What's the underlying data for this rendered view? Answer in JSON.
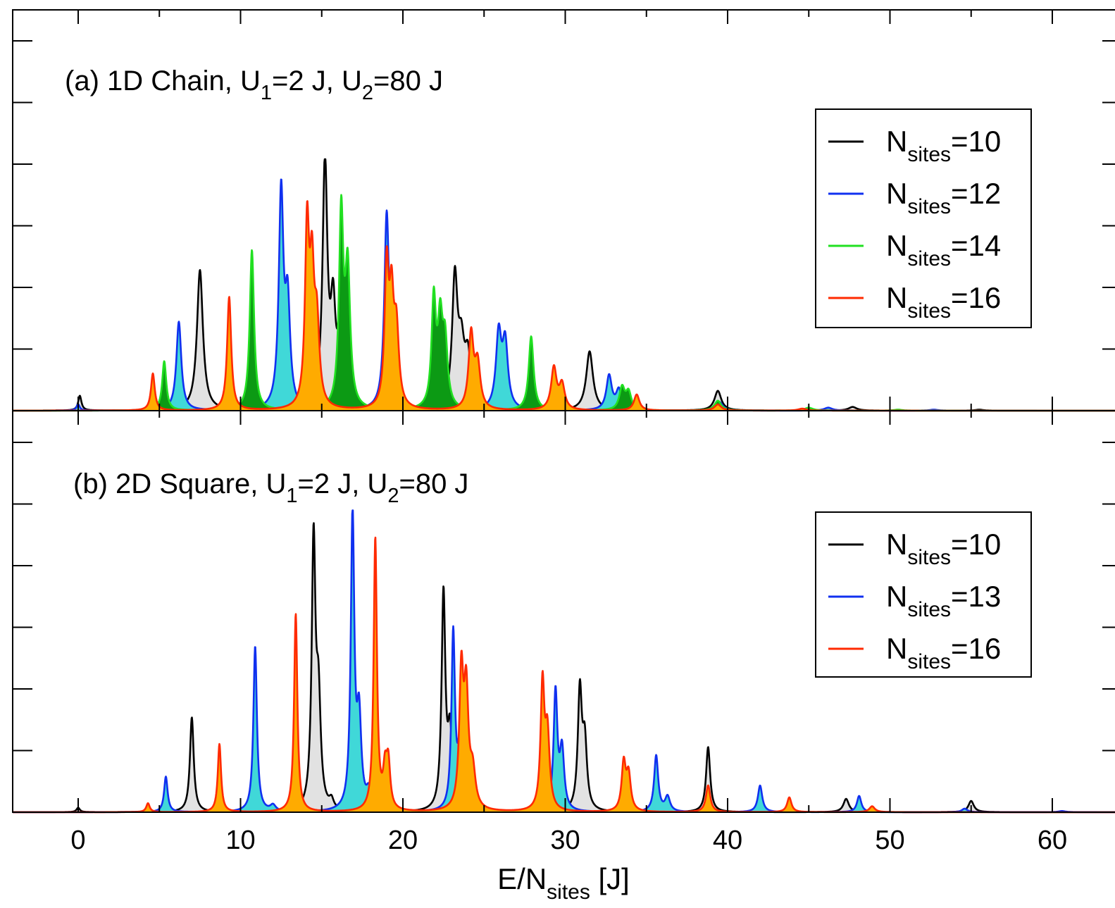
{
  "chart_data": [
    {
      "type": "area",
      "title_parts": [
        "(a) 1D Chain, U",
        "1",
        "=2 J, U",
        "2",
        "=80 J"
      ],
      "xlim": [
        -3.8,
        63.5
      ],
      "xticks": [
        0,
        10,
        20,
        30,
        40,
        50,
        60
      ],
      "legend": {
        "position": "top-right"
      },
      "series": [
        {
          "label": [
            "N",
            "sites",
            "=10"
          ],
          "color": "#000000",
          "fill": "#e2e2e2",
          "peaks": [
            {
              "x": 0.1,
              "y": 0.06,
              "w": 0.12
            },
            {
              "x": 7.5,
              "y": 0.57,
              "w": 0.22
            },
            {
              "x": 15.2,
              "y": 1.0,
              "w": 0.18
            },
            {
              "x": 15.7,
              "y": 0.38,
              "w": 0.18
            },
            {
              "x": 16.1,
              "y": 0.25,
              "w": 0.18
            },
            {
              "x": 23.2,
              "y": 0.52,
              "w": 0.2
            },
            {
              "x": 23.6,
              "y": 0.22,
              "w": 0.22
            },
            {
              "x": 24.0,
              "y": 0.2,
              "w": 0.22
            },
            {
              "x": 31.5,
              "y": 0.24,
              "w": 0.25
            },
            {
              "x": 39.4,
              "y": 0.08,
              "w": 0.25
            },
            {
              "x": 47.7,
              "y": 0.015,
              "w": 0.3
            },
            {
              "x": 55.5,
              "y": 0.004,
              "w": 0.3
            }
          ]
        },
        {
          "label": [
            "N",
            "sites",
            "=12"
          ],
          "color": "#1030f0",
          "fill": "#40d8d8",
          "peaks": [
            {
              "x": 0.0,
              "y": 0.025,
              "w": 0.12
            },
            {
              "x": 6.2,
              "y": 0.36,
              "w": 0.18
            },
            {
              "x": 12.5,
              "y": 0.87,
              "w": 0.17
            },
            {
              "x": 12.9,
              "y": 0.41,
              "w": 0.18
            },
            {
              "x": 19.0,
              "y": 0.76,
              "w": 0.17
            },
            {
              "x": 19.4,
              "y": 0.3,
              "w": 0.18
            },
            {
              "x": 25.9,
              "y": 0.3,
              "w": 0.2
            },
            {
              "x": 26.3,
              "y": 0.26,
              "w": 0.2
            },
            {
              "x": 32.7,
              "y": 0.14,
              "w": 0.2
            },
            {
              "x": 33.3,
              "y": 0.08,
              "w": 0.2
            },
            {
              "x": 39.5,
              "y": 0.035,
              "w": 0.25
            },
            {
              "x": 46.2,
              "y": 0.012,
              "w": 0.3
            },
            {
              "x": 52.7,
              "y": 0.004,
              "w": 0.3
            }
          ]
        },
        {
          "label": [
            "N",
            "sites",
            "=14"
          ],
          "color": "#22e022",
          "fill": "#0c9a14",
          "peaks": [
            {
              "x": 5.3,
              "y": 0.2,
              "w": 0.15
            },
            {
              "x": 10.7,
              "y": 0.65,
              "w": 0.16
            },
            {
              "x": 16.2,
              "y": 0.78,
              "w": 0.16
            },
            {
              "x": 16.6,
              "y": 0.55,
              "w": 0.18
            },
            {
              "x": 21.9,
              "y": 0.43,
              "w": 0.16
            },
            {
              "x": 22.3,
              "y": 0.33,
              "w": 0.18
            },
            {
              "x": 22.6,
              "y": 0.25,
              "w": 0.18
            },
            {
              "x": 27.9,
              "y": 0.3,
              "w": 0.18
            },
            {
              "x": 33.5,
              "y": 0.09,
              "w": 0.2
            },
            {
              "x": 33.9,
              "y": 0.07,
              "w": 0.2
            },
            {
              "x": 39.4,
              "y": 0.04,
              "w": 0.25
            },
            {
              "x": 45.0,
              "y": 0.012,
              "w": 0.3
            },
            {
              "x": 50.5,
              "y": 0.004,
              "w": 0.3
            }
          ]
        },
        {
          "label": [
            "N",
            "sites",
            "=16"
          ],
          "color": "#ff2a00",
          "fill": "#ffab00",
          "peaks": [
            {
              "x": 4.6,
              "y": 0.15,
              "w": 0.14
            },
            {
              "x": 9.3,
              "y": 0.46,
              "w": 0.15
            },
            {
              "x": 14.1,
              "y": 0.71,
              "w": 0.15
            },
            {
              "x": 14.4,
              "y": 0.5,
              "w": 0.16
            },
            {
              "x": 14.7,
              "y": 0.32,
              "w": 0.18
            },
            {
              "x": 19.0,
              "y": 0.55,
              "w": 0.15
            },
            {
              "x": 19.3,
              "y": 0.4,
              "w": 0.16
            },
            {
              "x": 19.6,
              "y": 0.3,
              "w": 0.18
            },
            {
              "x": 24.2,
              "y": 0.3,
              "w": 0.18
            },
            {
              "x": 24.6,
              "y": 0.18,
              "w": 0.2
            },
            {
              "x": 29.3,
              "y": 0.17,
              "w": 0.2
            },
            {
              "x": 29.8,
              "y": 0.1,
              "w": 0.2
            },
            {
              "x": 34.4,
              "y": 0.065,
              "w": 0.2
            },
            {
              "x": 39.4,
              "y": 0.025,
              "w": 0.25
            },
            {
              "x": 44.6,
              "y": 0.008,
              "w": 0.3
            }
          ]
        }
      ]
    },
    {
      "type": "area",
      "title_parts": [
        "(b) 2D Square, U",
        "1",
        "=2 J, U",
        "2",
        "=80 J"
      ],
      "xlabel_parts": [
        "E/N",
        "sites",
        " [J]"
      ],
      "xlim": [
        -3.8,
        63.5
      ],
      "xticks": [
        0,
        10,
        20,
        30,
        40,
        50,
        60
      ],
      "xticklabels": [
        "0",
        "10",
        "20",
        "30",
        "40",
        "50",
        "60"
      ],
      "legend": {
        "position": "top-right"
      },
      "series": [
        {
          "label": [
            "N",
            "sites",
            "=10"
          ],
          "color": "#000000",
          "fill": "#e2e2e2",
          "peaks": [
            {
              "x": 0.0,
              "y": 0.015,
              "w": 0.12
            },
            {
              "x": 7.0,
              "y": 0.32,
              "w": 0.14
            },
            {
              "x": 14.5,
              "y": 0.9,
              "w": 0.14
            },
            {
              "x": 14.8,
              "y": 0.35,
              "w": 0.16
            },
            {
              "x": 15.6,
              "y": 0.03,
              "w": 0.16
            },
            {
              "x": 22.5,
              "y": 0.73,
              "w": 0.14
            },
            {
              "x": 22.9,
              "y": 0.25,
              "w": 0.16
            },
            {
              "x": 30.9,
              "y": 0.4,
              "w": 0.15
            },
            {
              "x": 31.2,
              "y": 0.22,
              "w": 0.16
            },
            {
              "x": 38.8,
              "y": 0.22,
              "w": 0.15
            },
            {
              "x": 47.3,
              "y": 0.045,
              "w": 0.2
            },
            {
              "x": 55.0,
              "y": 0.038,
              "w": 0.2
            }
          ]
        },
        {
          "label": [
            "N",
            "sites",
            "=13"
          ],
          "color": "#1030f0",
          "fill": "#40d8d8",
          "peaks": [
            {
              "x": 5.4,
              "y": 0.12,
              "w": 0.13
            },
            {
              "x": 10.9,
              "y": 0.56,
              "w": 0.13
            },
            {
              "x": 12.0,
              "y": 0.02,
              "w": 0.2
            },
            {
              "x": 16.9,
              "y": 1.0,
              "w": 0.13
            },
            {
              "x": 17.3,
              "y": 0.3,
              "w": 0.16
            },
            {
              "x": 17.9,
              "y": 0.06,
              "w": 0.18
            },
            {
              "x": 23.1,
              "y": 0.6,
              "w": 0.13
            },
            {
              "x": 23.5,
              "y": 0.2,
              "w": 0.16
            },
            {
              "x": 29.4,
              "y": 0.4,
              "w": 0.14
            },
            {
              "x": 29.8,
              "y": 0.2,
              "w": 0.16
            },
            {
              "x": 35.6,
              "y": 0.19,
              "w": 0.15
            },
            {
              "x": 36.3,
              "y": 0.05,
              "w": 0.18
            },
            {
              "x": 42.0,
              "y": 0.09,
              "w": 0.16
            },
            {
              "x": 48.1,
              "y": 0.055,
              "w": 0.16
            },
            {
              "x": 54.6,
              "y": 0.012,
              "w": 0.2
            },
            {
              "x": 60.6,
              "y": 0.004,
              "w": 0.25
            }
          ]
        },
        {
          "label": [
            "N",
            "sites",
            "=16"
          ],
          "color": "#ff2a00",
          "fill": "#ffab00",
          "peaks": [
            {
              "x": 4.3,
              "y": 0.03,
              "w": 0.13
            },
            {
              "x": 8.7,
              "y": 0.23,
              "w": 0.12
            },
            {
              "x": 13.4,
              "y": 0.67,
              "w": 0.12
            },
            {
              "x": 18.3,
              "y": 0.92,
              "w": 0.12
            },
            {
              "x": 18.9,
              "y": 0.12,
              "w": 0.14
            },
            {
              "x": 19.1,
              "y": 0.15,
              "w": 0.14
            },
            {
              "x": 23.6,
              "y": 0.45,
              "w": 0.15
            },
            {
              "x": 23.9,
              "y": 0.38,
              "w": 0.16
            },
            {
              "x": 24.3,
              "y": 0.12,
              "w": 0.2
            },
            {
              "x": 28.6,
              "y": 0.42,
              "w": 0.14
            },
            {
              "x": 28.9,
              "y": 0.25,
              "w": 0.16
            },
            {
              "x": 33.6,
              "y": 0.16,
              "w": 0.15
            },
            {
              "x": 33.9,
              "y": 0.12,
              "w": 0.16
            },
            {
              "x": 38.8,
              "y": 0.09,
              "w": 0.16
            },
            {
              "x": 43.8,
              "y": 0.05,
              "w": 0.16
            },
            {
              "x": 48.9,
              "y": 0.02,
              "w": 0.2
            }
          ]
        }
      ]
    }
  ]
}
